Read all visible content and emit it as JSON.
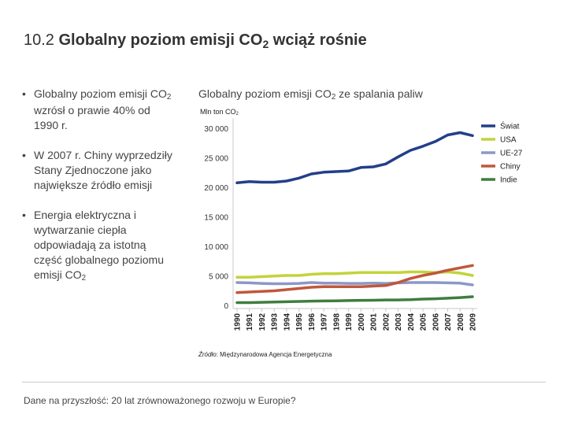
{
  "slide": {
    "title_num": "10.2",
    "title_bold_a": "Globalny poziom emisji CO",
    "title_sub": "2",
    "title_bold_b": " wciąż rośnie",
    "footer": "Dane na przyszłość: 20 lat zrównoważonego rozwoju w Europie?"
  },
  "bullets": [
    {
      "a": "Globalny poziom emisji CO",
      "sub": "2",
      "b": " wzrósł o prawie 40% od 1990 r."
    },
    {
      "a": "W 2007 r. Chiny wyprzedziły Stany Zjednoczone jako największe źródło emisji",
      "sub": "",
      "b": ""
    },
    {
      "a": "Energia elektryczna i wytwarzanie ciepła odpowiadają za istotną część globalnego poziomu emisji CO",
      "sub": "2",
      "b": ""
    }
  ],
  "chart_head": {
    "a": "Globalny poziom emisji CO",
    "sub": "2",
    "b": " ze spalania paliw"
  },
  "chart_data": {
    "type": "line",
    "ylabel": "Mln ton CO",
    "ylabel_sub": "2",
    "source_label": "Źródło",
    "source_text": ": Międzynarodowa Agencja Energetyczna",
    "x": [
      "1990",
      "1991",
      "1992",
      "1993",
      "1994",
      "1995",
      "1996",
      "1997",
      "1998",
      "1999",
      "2000",
      "2001",
      "2002",
      "2003",
      "2004",
      "2005",
      "2006",
      "2007",
      "2008",
      "2009"
    ],
    "ylim": [
      0,
      30000
    ],
    "yticks": [
      0,
      5000,
      10000,
      15000,
      20000,
      25000,
      30000
    ],
    "ytick_labels": [
      "0",
      "5 000",
      "10 000",
      "15 000",
      "20 000",
      "25 000",
      "30 000"
    ],
    "legend_position": "right",
    "grid": false,
    "series": [
      {
        "name": "Świat",
        "color": "#233f8a",
        "values": [
          20900,
          21100,
          21000,
          21000,
          21200,
          21700,
          22400,
          22700,
          22800,
          22900,
          23500,
          23600,
          24100,
          25300,
          26400,
          27100,
          27900,
          29000,
          29400,
          28900
        ]
      },
      {
        "name": "USA",
        "color": "#c3d33a",
        "values": [
          4900,
          4900,
          5000,
          5100,
          5200,
          5200,
          5400,
          5500,
          5500,
          5600,
          5700,
          5700,
          5700,
          5700,
          5800,
          5800,
          5700,
          5800,
          5600,
          5200
        ]
      },
      {
        "name": "UE-27",
        "color": "#8b98c7",
        "values": [
          4000,
          3950,
          3850,
          3800,
          3800,
          3850,
          4000,
          3900,
          3900,
          3850,
          3850,
          3900,
          3850,
          3950,
          4000,
          4000,
          4000,
          3950,
          3900,
          3600
        ]
      },
      {
        "name": "Chiny",
        "color": "#c0573b",
        "values": [
          2300,
          2400,
          2500,
          2600,
          2800,
          3000,
          3200,
          3300,
          3300,
          3300,
          3300,
          3400,
          3500,
          4000,
          4700,
          5200,
          5600,
          6100,
          6500,
          6900
        ]
      },
      {
        "name": "Indie",
        "color": "#3f7d3f",
        "values": [
          600,
          600,
          650,
          700,
          750,
          800,
          850,
          880,
          900,
          950,
          980,
          1000,
          1050,
          1050,
          1100,
          1200,
          1250,
          1350,
          1450,
          1600
        ]
      }
    ]
  }
}
